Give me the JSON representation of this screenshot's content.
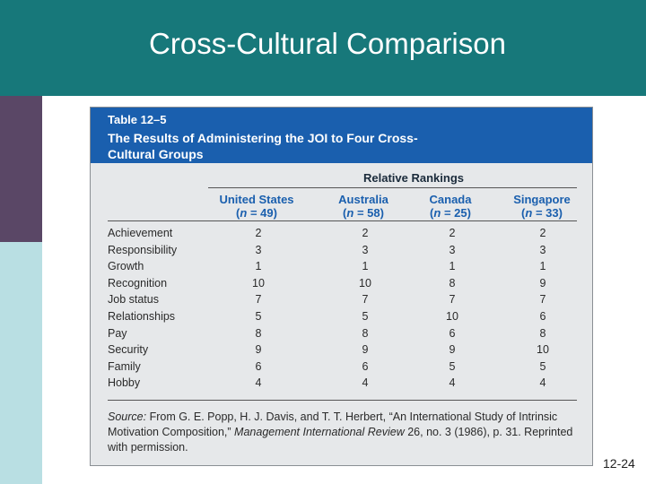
{
  "slide": {
    "title": "Cross-Cultural Comparison",
    "slide_number": "12-24"
  },
  "table": {
    "label": "Table 12–5",
    "caption": "The Results of Administering the JOI to Four Cross-Cultural Groups",
    "group_header": "Relative Rankings",
    "columns": [
      {
        "name": "United States",
        "n": "49"
      },
      {
        "name": "Australia",
        "n": "58"
      },
      {
        "name": "Canada",
        "n": "25"
      },
      {
        "name": "Singapore",
        "n": "33"
      }
    ],
    "rows": [
      {
        "label": "Achievement",
        "values": [
          "2",
          "2",
          "2",
          "2"
        ]
      },
      {
        "label": "Responsibility",
        "values": [
          "3",
          "3",
          "3",
          "3"
        ]
      },
      {
        "label": "Growth",
        "values": [
          "1",
          "1",
          "1",
          "1"
        ]
      },
      {
        "label": "Recognition",
        "values": [
          "10",
          "10",
          "8",
          "9"
        ]
      },
      {
        "label": "Job status",
        "values": [
          "7",
          "7",
          "7",
          "7"
        ]
      },
      {
        "label": "Relationships",
        "values": [
          "5",
          "5",
          "10",
          "6"
        ]
      },
      {
        "label": "Pay",
        "values": [
          "8",
          "8",
          "6",
          "8"
        ]
      },
      {
        "label": "Security",
        "values": [
          "9",
          "9",
          "9",
          "10"
        ]
      },
      {
        "label": "Family",
        "values": [
          "6",
          "6",
          "5",
          "5"
        ]
      },
      {
        "label": "Hobby",
        "values": [
          "4",
          "4",
          "4",
          "4"
        ]
      }
    ],
    "source": {
      "prefix": "Source:",
      "authors": "From G. E. Popp, H. J. Davis, and T. T. Herbert, “An International Study of Intrinsic Motivation Composition,”",
      "journal": "Management International Review",
      "tail": "26, no. 3 (1986), p. 31. Reprinted with permission."
    }
  }
}
